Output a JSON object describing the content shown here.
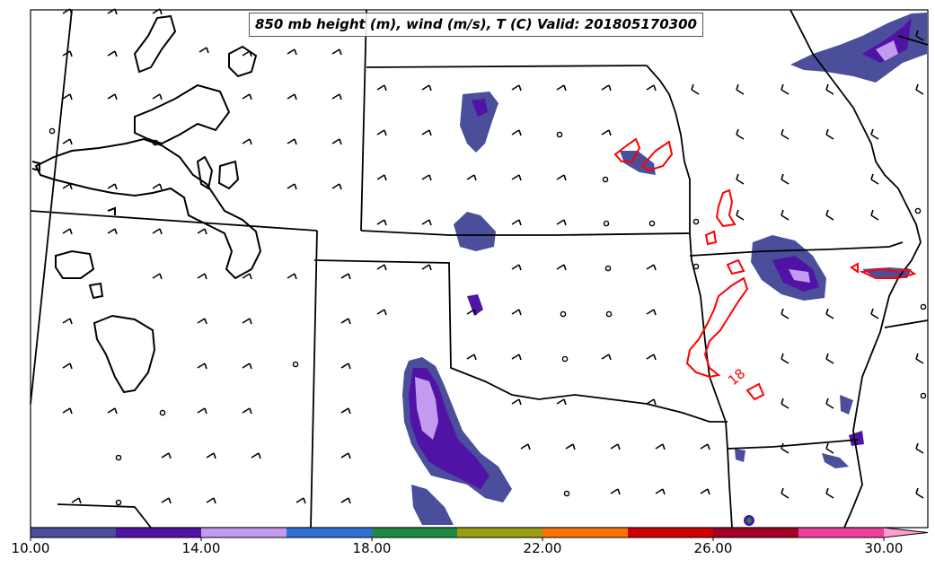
{
  "title": "850 mb height (m), wind (m/s), T (C) Valid: 201805170300",
  "contour_label": "18",
  "colorbar": {
    "tick_labels": [
      "10.00",
      "14.00",
      "18.00",
      "22.00",
      "26.00",
      "30.00"
    ],
    "colors": [
      "#4a4e9b",
      "#5112a6",
      "#c49af0",
      "#2f6fd6",
      "#1e8a45",
      "#9a9e10",
      "#ff7300",
      "#d10000",
      "#a30024",
      "#ef3f9a",
      "#ff9ed2"
    ]
  },
  "contour_colors": {
    "temperature": "#ff0000",
    "terrain": "#000000"
  }
}
